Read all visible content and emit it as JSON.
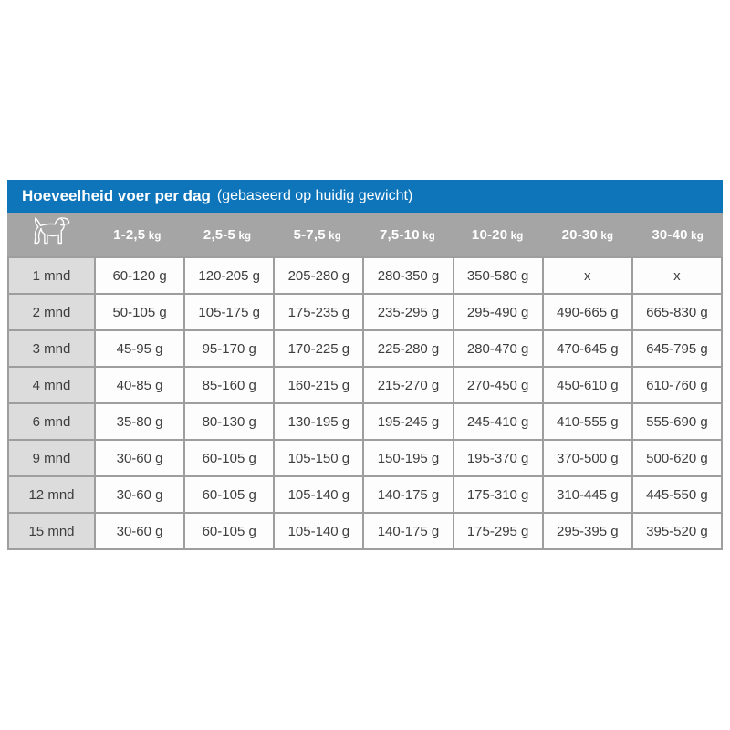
{
  "title": {
    "main": "Hoeveelheid voer per dag",
    "subtitle": "(gebaseerd op huidig gewicht)"
  },
  "icons": {
    "dog": "dog-icon"
  },
  "colors": {
    "title_bar_blue": "#0e75bb",
    "header_band_gray": "#a5a5a5",
    "label_cell_gray": "#dcdcdc",
    "border_gray": "#9e9e9e",
    "data_cell_white": "#fdfdfd",
    "cell_text": "#3d3d3d",
    "header_text": "#ffffff"
  },
  "table": {
    "weight_headers": [
      {
        "range": "1-2,5",
        "unit": "kg"
      },
      {
        "range": "2,5-5",
        "unit": "kg"
      },
      {
        "range": "5-7,5",
        "unit": "kg"
      },
      {
        "range": "7,5-10",
        "unit": "kg"
      },
      {
        "range": "10-20",
        "unit": "kg"
      },
      {
        "range": "20-30",
        "unit": "kg"
      },
      {
        "range": "30-40",
        "unit": "kg"
      }
    ],
    "rows": [
      {
        "age": "1 mnd",
        "values": [
          "60-120 g",
          "120-205 g",
          "205-280 g",
          "280-350 g",
          "350-580 g",
          "x",
          "x"
        ]
      },
      {
        "age": "2 mnd",
        "values": [
          "50-105 g",
          "105-175 g",
          "175-235 g",
          "235-295 g",
          "295-490 g",
          "490-665 g",
          "665-830 g"
        ]
      },
      {
        "age": "3 mnd",
        "values": [
          "45-95 g",
          "95-170 g",
          "170-225 g",
          "225-280 g",
          "280-470 g",
          "470-645 g",
          "645-795 g"
        ]
      },
      {
        "age": "4 mnd",
        "values": [
          "40-85 g",
          "85-160 g",
          "160-215 g",
          "215-270 g",
          "270-450 g",
          "450-610 g",
          "610-760 g"
        ]
      },
      {
        "age": "6 mnd",
        "values": [
          "35-80 g",
          "80-130 g",
          "130-195 g",
          "195-245 g",
          "245-410 g",
          "410-555 g",
          "555-690 g"
        ]
      },
      {
        "age": "9 mnd",
        "values": [
          "30-60 g",
          "60-105 g",
          "105-150 g",
          "150-195 g",
          "195-370 g",
          "370-500 g",
          "500-620 g"
        ]
      },
      {
        "age": "12 mnd",
        "values": [
          "30-60 g",
          "60-105 g",
          "105-140 g",
          "140-175 g",
          "175-310 g",
          "310-445 g",
          "445-550 g"
        ]
      },
      {
        "age": "15 mnd",
        "values": [
          "30-60 g",
          "60-105 g",
          "105-140 g",
          "140-175 g",
          "175-295 g",
          "295-395 g",
          "395-520 g"
        ]
      }
    ]
  },
  "chart_data": {
    "type": "table",
    "title": "Hoeveelheid voer per dag (gebaseerd op huidig gewicht)",
    "column_headers": [
      "1-2,5 kg",
      "2,5-5 kg",
      "5-7,5 kg",
      "7,5-10 kg",
      "10-20 kg",
      "20-30 kg",
      "30-40 kg"
    ],
    "row_headers": [
      "1 mnd",
      "2 mnd",
      "3 mnd",
      "4 mnd",
      "6 mnd",
      "9 mnd",
      "12 mnd",
      "15 mnd"
    ],
    "cells": [
      [
        "60-120 g",
        "120-205 g",
        "205-280 g",
        "280-350 g",
        "350-580 g",
        "x",
        "x"
      ],
      [
        "50-105 g",
        "105-175 g",
        "175-235 g",
        "235-295 g",
        "295-490 g",
        "490-665 g",
        "665-830 g"
      ],
      [
        "45-95 g",
        "95-170 g",
        "170-225 g",
        "225-280 g",
        "280-470 g",
        "470-645 g",
        "645-795 g"
      ],
      [
        "40-85 g",
        "85-160 g",
        "160-215 g",
        "215-270 g",
        "270-450 g",
        "450-610 g",
        "610-760 g"
      ],
      [
        "35-80 g",
        "80-130 g",
        "130-195 g",
        "195-245 g",
        "245-410 g",
        "410-555 g",
        "555-690 g"
      ],
      [
        "30-60 g",
        "60-105 g",
        "105-150 g",
        "150-195 g",
        "195-370 g",
        "370-500 g",
        "500-620 g"
      ],
      [
        "30-60 g",
        "60-105 g",
        "105-140 g",
        "140-175 g",
        "175-310 g",
        "310-445 g",
        "445-550 g"
      ],
      [
        "30-60 g",
        "60-105 g",
        "105-140 g",
        "140-175 g",
        "175-295 g",
        "295-395 g",
        "395-520 g"
      ]
    ]
  }
}
